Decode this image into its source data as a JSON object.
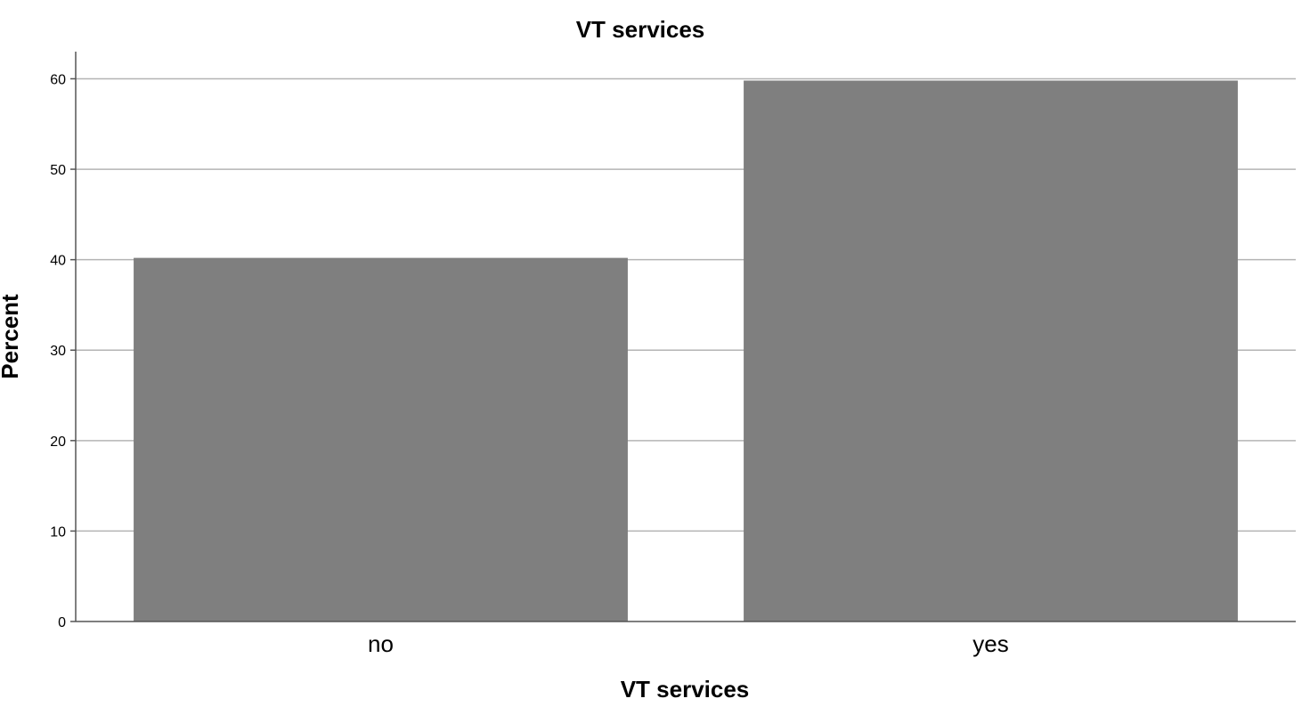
{
  "chart_data": {
    "type": "bar",
    "title": "VT services",
    "xlabel": "VT services",
    "ylabel": "Percent",
    "categories": [
      "no",
      "yes"
    ],
    "values": [
      40.2,
      59.8
    ],
    "ylim": [
      0,
      63
    ],
    "yticks": [
      "0",
      "10",
      "20",
      "30",
      "40",
      "50",
      "60"
    ],
    "grid": true,
    "bar_color": "#7f7f7f",
    "grid_color": "#b4b4b4"
  }
}
